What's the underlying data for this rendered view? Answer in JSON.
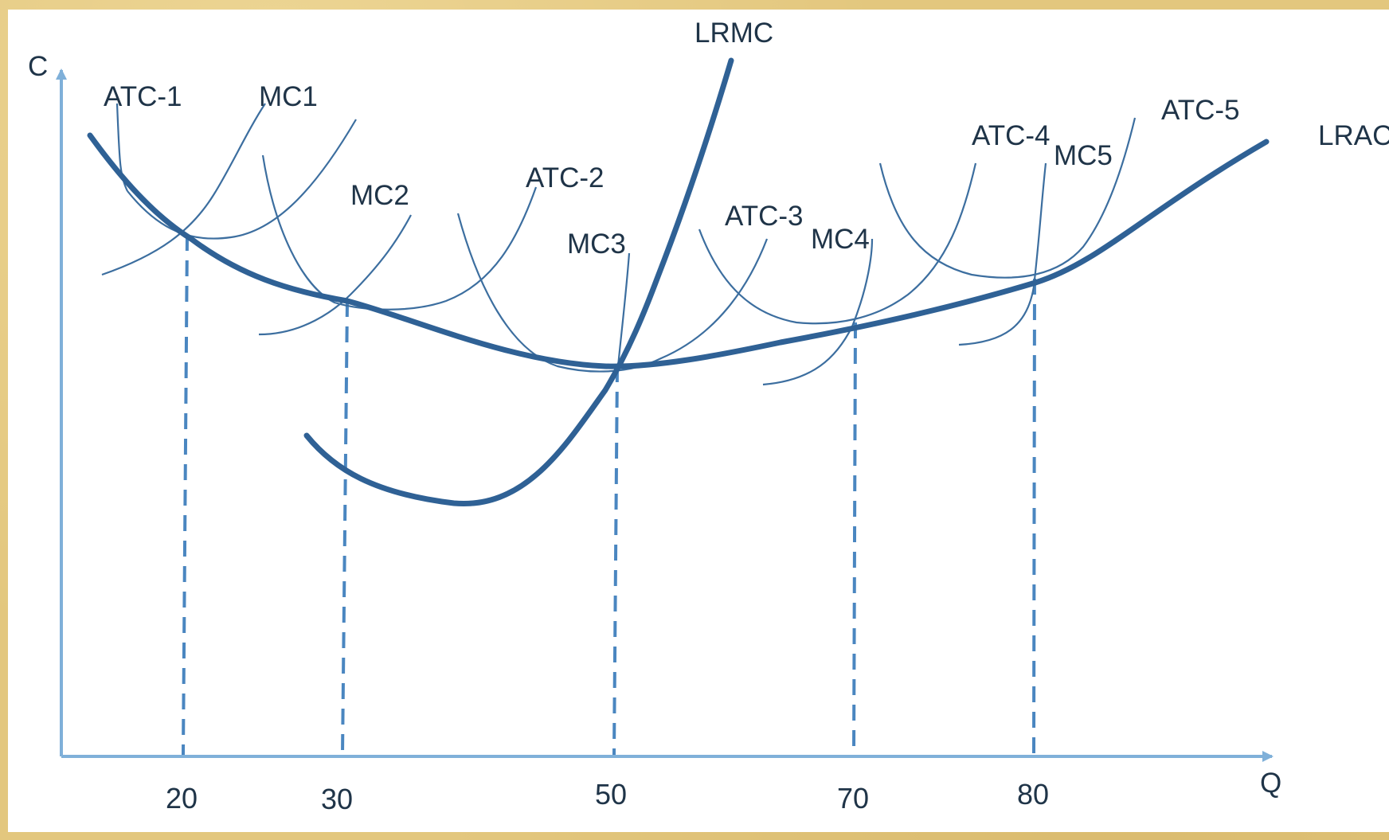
{
  "diagram": {
    "axes": {
      "y_label": "C",
      "x_label": "Q",
      "x_ticks": [
        "20",
        "30",
        "50",
        "70",
        "80"
      ]
    },
    "curves": {
      "lrmc": "LRMC",
      "lrac": "LRAC",
      "atc_1": "ATC-1",
      "mc_1": "MC1",
      "mc_2": "MC2",
      "atc_2": "ATC-2",
      "mc_3": "MC3",
      "atc_3": "ATC-3",
      "mc_4": "MC4",
      "atc_4": "ATC-4",
      "mc_5": "MC5",
      "atc_5": "ATC-5"
    },
    "colors": {
      "curve": "#2f6195",
      "axis": "#7fb0d9",
      "frame": "#e3c77e"
    }
  }
}
